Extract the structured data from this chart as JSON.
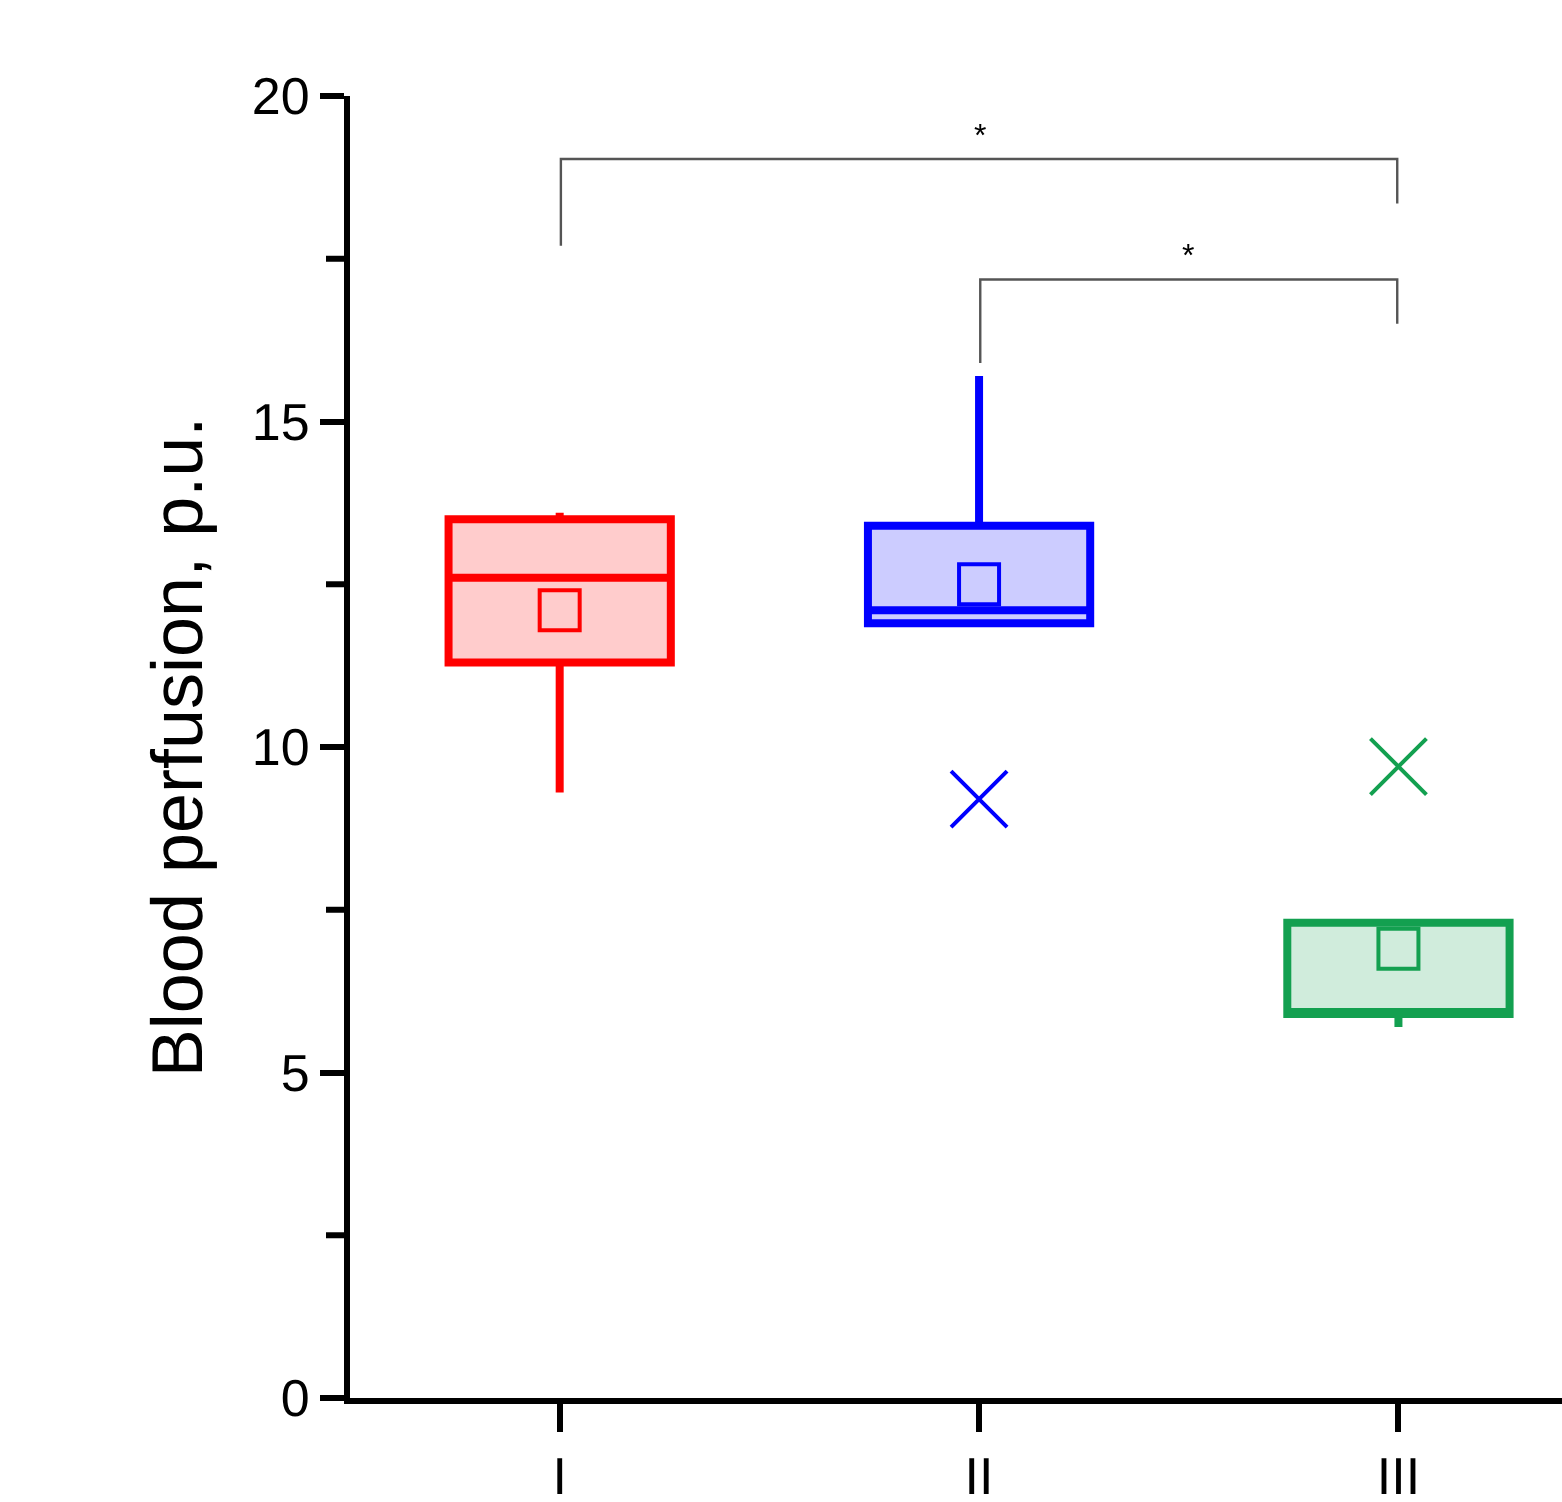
{
  "chart_data": {
    "type": "box",
    "ylabel": "Blood perfusion, p.u.",
    "categories": [
      "I",
      "II",
      "III"
    ],
    "colors": [
      "#ff0000",
      "#0000ff",
      "#13a050"
    ],
    "boxes": [
      {
        "low": 9.3,
        "q1": 11.3,
        "median": 12.6,
        "q3": 13.5,
        "high": 13.6,
        "mean": 12.1
      },
      {
        "low": 11.9,
        "q1": 11.9,
        "median": 12.1,
        "q3": 13.4,
        "high": 15.7,
        "mean": 12.5,
        "outliers": [
          9.2
        ]
      },
      {
        "low": 5.7,
        "q1": 5.9,
        "median": 5.9,
        "q3": 7.3,
        "high": 7.3,
        "mean": 6.9,
        "outliers": [
          9.7
        ]
      }
    ],
    "ylim": [
      0,
      20
    ],
    "yticks": [
      0,
      {
        "value": 2.5,
        "label": null
      },
      5,
      {
        "value": 7.5,
        "label": null
      },
      10,
      {
        "value": 12.5,
        "label": null
      },
      15,
      {
        "value": 17.5,
        "label": null
      },
      20
    ],
    "marker": "cross",
    "annotations": [
      "*",
      "*"
    ]
  }
}
